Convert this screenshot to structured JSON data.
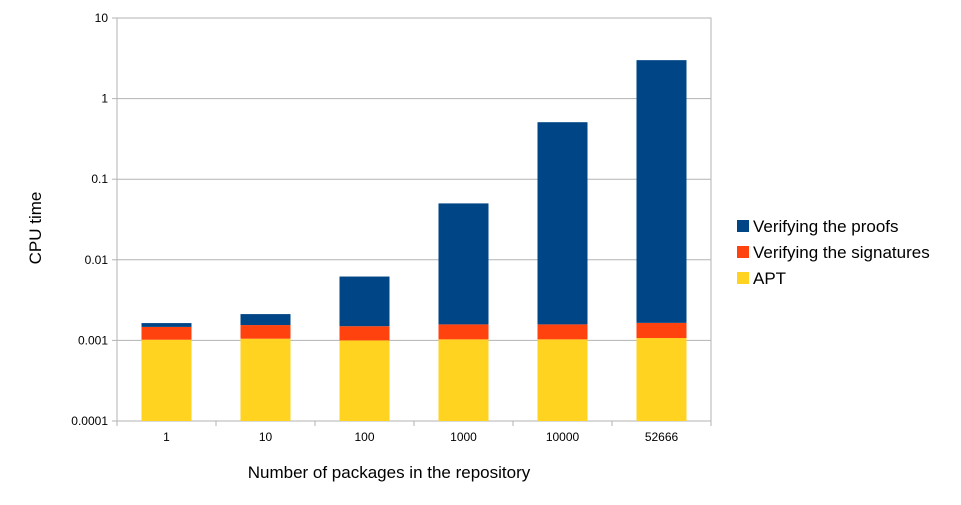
{
  "chart_data": {
    "type": "bar",
    "stacked": true,
    "yscale": "log",
    "ylim": [
      0.0001,
      10
    ],
    "grid": true,
    "legend_position": "right",
    "xlabel": "Number of packages in the repository",
    "ylabel": "CPU time",
    "categories": [
      "1",
      "10",
      "100",
      "1000",
      "10000",
      "52666"
    ],
    "y_ticks": [
      "0.0001",
      "0.001",
      "0.01",
      "0.1",
      "1",
      "10"
    ],
    "series": [
      {
        "name": "APT",
        "color": "#FFD320",
        "values": [
          0.00092,
          0.00095,
          0.0009,
          0.00093,
          0.00093,
          0.00097
        ]
      },
      {
        "name": "Verifying the signatures",
        "color": "#FF420E",
        "values": [
          0.00045,
          0.0005,
          0.0005,
          0.00055,
          0.00055,
          0.00058
        ]
      },
      {
        "name": "Verifying the proofs",
        "color": "#004586",
        "values": [
          0.00017,
          0.00057,
          0.0047,
          0.0485,
          0.508,
          2.998
        ]
      }
    ],
    "legend_order": [
      "Verifying the proofs",
      "Verifying the signatures",
      "APT"
    ]
  }
}
